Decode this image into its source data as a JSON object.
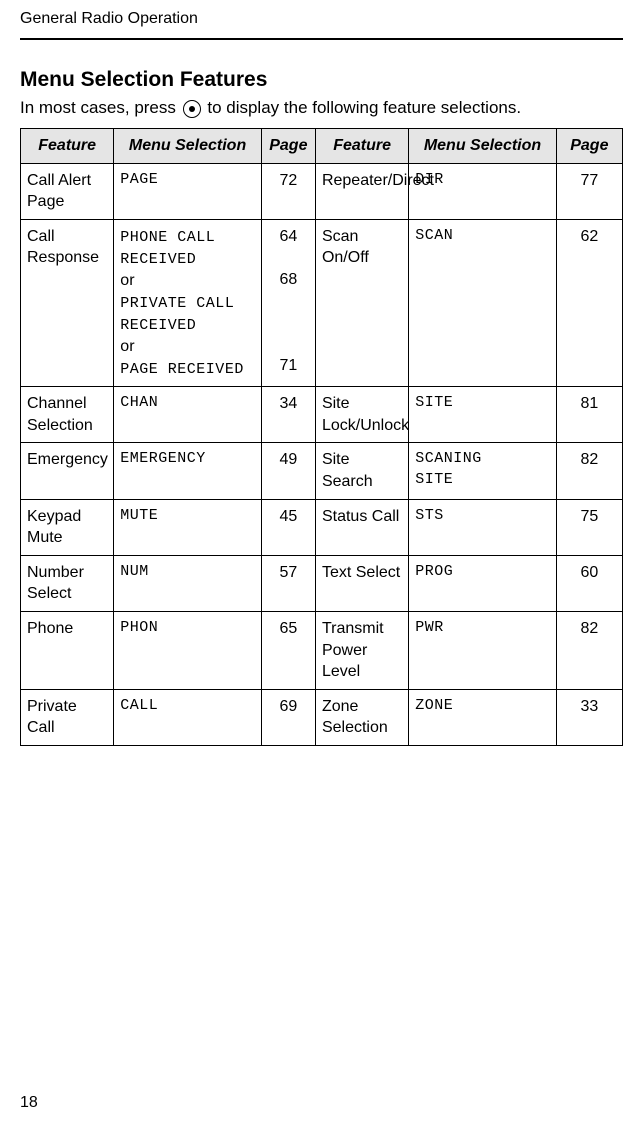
{
  "header": {
    "running_title": "General Radio Operation"
  },
  "section": {
    "title": "Menu Selection Features",
    "intro_pre": "In most cases, press ",
    "intro_post": " to display the following feature selections."
  },
  "table": {
    "columns": {
      "feature_l": "Feature",
      "menu_l": "Menu Selection",
      "page_l": "Page",
      "feature_r": "Feature",
      "menu_r": "Menu Selection",
      "page_r": "Page"
    },
    "rows": [
      {
        "fl": "Call Alert Page",
        "ml": "PAGE",
        "pl": "72",
        "fr": "Repeater/Direct",
        "mr": "DIR",
        "pr": "77"
      },
      {
        "fl": "Call Response",
        "ml_lines": [
          "PHONE CALL",
          "RECEIVED",
          "or",
          "PRIVATE CALL",
          "RECEIVED",
          "or",
          "PAGE RECEIVED"
        ],
        "ml_mono_flags": [
          true,
          true,
          false,
          true,
          true,
          false,
          true
        ],
        "pl_lines": [
          "64",
          "",
          "68",
          "",
          "",
          "",
          "71"
        ],
        "fr": "Scan On/Off",
        "mr": "SCAN",
        "pr": "62"
      },
      {
        "fl": "Channel Selection",
        "ml": "CHAN",
        "pl": "34",
        "fr": "Site Lock/Unlock",
        "mr": "SITE",
        "pr": "81"
      },
      {
        "fl": "Emergency",
        "ml": "EMERGENCY",
        "pl": "49",
        "fr": "Site Search",
        "mr_lines": [
          "SCANING",
          "SITE"
        ],
        "pr": "82"
      },
      {
        "fl": "Keypad Mute",
        "ml": "MUTE",
        "pl": "45",
        "fr": "Status Call",
        "mr": "STS",
        "pr": "75"
      },
      {
        "fl": "Number Select",
        "ml": "NUM",
        "pl": "57",
        "fr": "Text Select",
        "mr": "PROG",
        "pr": "60"
      },
      {
        "fl": "Phone",
        "ml": "PHON",
        "pl": "65",
        "fr": "Transmit Power Level",
        "mr": "PWR",
        "pr": "82"
      },
      {
        "fl": "Private Call",
        "ml": "CALL",
        "pl": "69",
        "fr": "Zone Selection",
        "mr": "ZONE",
        "pr": "33"
      }
    ]
  },
  "footer": {
    "page_number": "18"
  },
  "style": {
    "header_bg": "#e5e5e5",
    "border_color": "#000000",
    "mono_font": "Courier New",
    "body_font": "Arial"
  }
}
